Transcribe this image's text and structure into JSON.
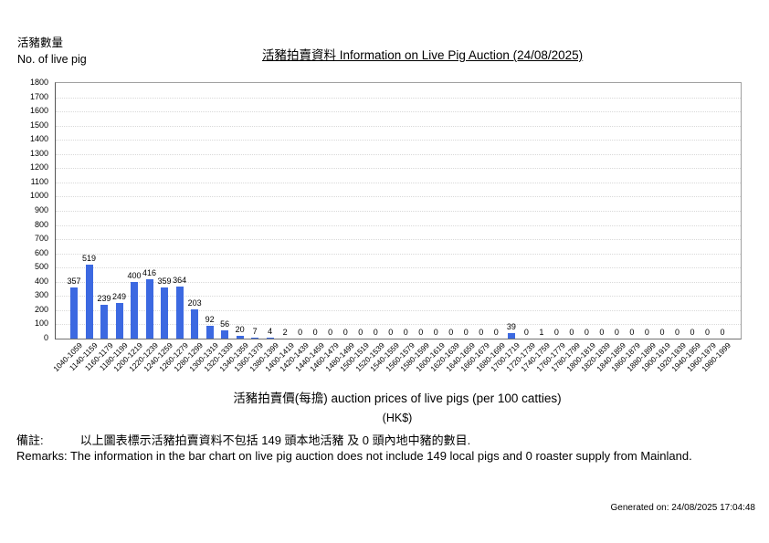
{
  "header": {
    "axis_label_zh": "活豬數量",
    "axis_label_en": "No. of live pig",
    "title": "活豬拍賣資料 Information on Live Pig Auction (24/08/2025)"
  },
  "chart_data": {
    "type": "bar",
    "title": "活豬拍賣資料 Information on Live Pig Auction (24/08/2025)",
    "ylabel": "活豬數量 No. of live pig",
    "xlabel": "活豬拍賣價(每擔) auction prices of live pigs (per 100 catties)",
    "x_unit": "(HK$)",
    "ylim": [
      0,
      1800
    ],
    "ytick_step": 100,
    "grid": "horizontal-dotted",
    "legend": "none",
    "bar_color": "#3c69e1",
    "categories": [
      "1040-1059",
      "1140-1159",
      "1160-1179",
      "1180-1199",
      "1200-1219",
      "1220-1239",
      "1240-1259",
      "1260-1279",
      "1280-1299",
      "1300-1319",
      "1320-1339",
      "1340-1359",
      "1360-1379",
      "1380-1399",
      "1400-1419",
      "1420-1439",
      "1440-1459",
      "1460-1479",
      "1480-1499",
      "1500-1519",
      "1520-1539",
      "1540-1559",
      "1560-1579",
      "1580-1599",
      "1600-1619",
      "1620-1639",
      "1640-1659",
      "1660-1679",
      "1680-1699",
      "1700-1719",
      "1720-1739",
      "1740-1759",
      "1760-1779",
      "1780-1799",
      "1800-1819",
      "1820-1839",
      "1840-1859",
      "1860-1879",
      "1880-1899",
      "1900-1919",
      "1920-1939",
      "1940-1959",
      "1960-1979",
      "1980-1999"
    ],
    "values": [
      357,
      519,
      239,
      249,
      400,
      416,
      359,
      364,
      203,
      92,
      56,
      20,
      7,
      4,
      2,
      0,
      0,
      0,
      0,
      0,
      0,
      0,
      0,
      0,
      0,
      0,
      0,
      0,
      0,
      39,
      0,
      1,
      0,
      0,
      0,
      0,
      0,
      0,
      0,
      0,
      0,
      0,
      0,
      0
    ]
  },
  "footer": {
    "remark_zh_label": "備註:",
    "remark_zh_text": "以上圖表標示活豬拍賣資料不包括 149 頭本地活豬 及 0 頭內地中豬的數目.",
    "remark_en": "Remarks: The information in the bar chart on live pig auction does not include 149 local pigs and 0 roaster supply from Mainland.",
    "generated_on": "Generated on: 24/08/2025 17:04:48"
  }
}
